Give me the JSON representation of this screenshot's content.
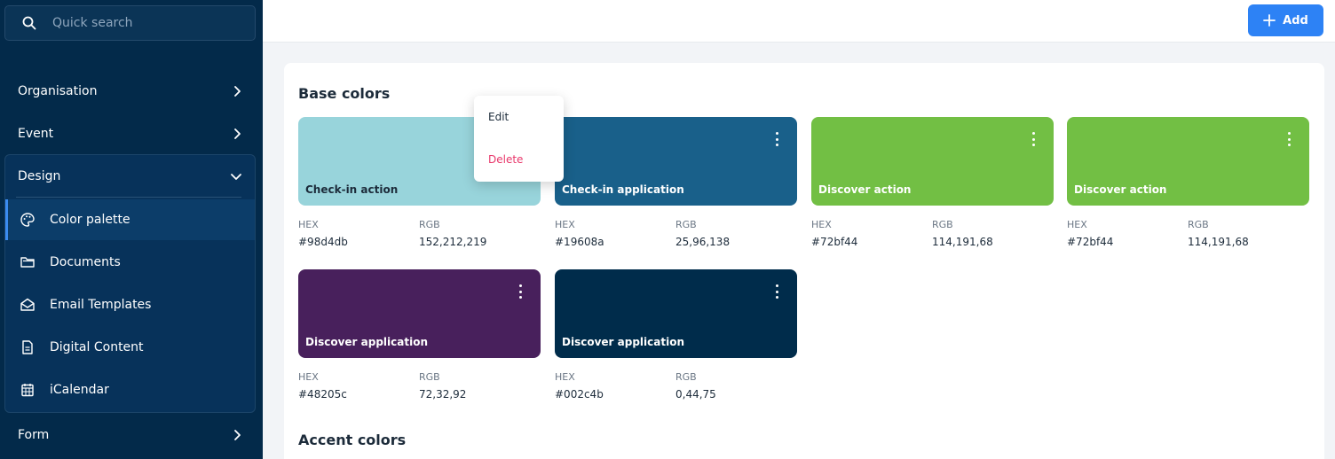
{
  "sidebar": {
    "search_placeholder": "Quick search",
    "nav": [
      {
        "label": "Organisation"
      },
      {
        "label": "Event"
      }
    ],
    "design": {
      "label": "Design",
      "items": [
        {
          "label": "Color palette",
          "icon": "palette-icon"
        },
        {
          "label": "Documents",
          "icon": "folder-icon"
        },
        {
          "label": "Email Templates",
          "icon": "envelope-open-icon"
        },
        {
          "label": "Digital Content",
          "icon": "document-icon"
        },
        {
          "label": "iCalendar",
          "icon": "calendar-icon"
        }
      ]
    },
    "form": {
      "label": "Form"
    }
  },
  "topbar": {
    "add_label": "Add"
  },
  "main": {
    "base_title": "Base colors",
    "accent_title": "Accent colors",
    "hex_label": "HEX",
    "rgb_label": "RGB",
    "colors": [
      {
        "name": "Check-in action",
        "hex": "#98d4db",
        "rgb": "152,212,219",
        "color": "#98d4db"
      },
      {
        "name": "Check-in application",
        "hex": "#19608a",
        "rgb": "25,96,138",
        "color": "#19608a"
      },
      {
        "name": "Discover action",
        "hex": "#72bf44",
        "rgb": "114,191,68",
        "color": "#72bf44"
      },
      {
        "name": "Discover action",
        "hex": "#72bf44",
        "rgb": "114,191,68",
        "color": "#72bf44"
      },
      {
        "name": "Discover application",
        "hex": "#48205c",
        "rgb": "72,32,92",
        "color": "#48205c"
      },
      {
        "name": "Discover application",
        "hex": "#002c4b",
        "rgb": "0,44,75",
        "color": "#002c4b"
      }
    ]
  },
  "menu": {
    "edit": "Edit",
    "delete": "Delete"
  },
  "theme": {
    "sidebar_bg": "#032a4a",
    "accent": "#2d82f5",
    "danger": "#e8386b"
  }
}
